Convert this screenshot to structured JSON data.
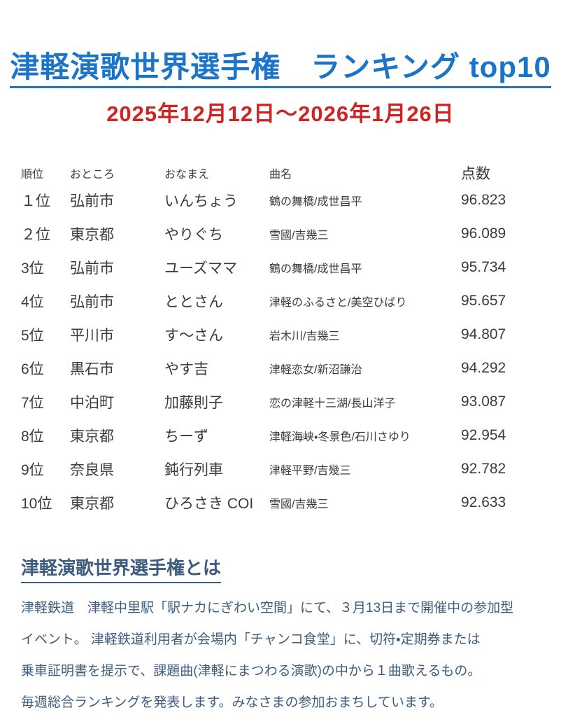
{
  "page": {
    "title": "津軽演歌世界選手権　ランキング top10",
    "date_range": "2025年12月12日～2026年1月26日"
  },
  "table": {
    "headers": {
      "rank": "順位",
      "place": "おところ",
      "name": "おなまえ",
      "song": "曲名",
      "score": "点数"
    },
    "rows": [
      {
        "rank": "１位",
        "place": "弘前市",
        "name": "いんちょう",
        "song": "鶴の舞橋/成世昌平",
        "score": "96.823"
      },
      {
        "rank": "２位",
        "place": "東京都",
        "name": "やりぐち",
        "song": "雪國/吉幾三",
        "score": "96.089"
      },
      {
        "rank": "3位",
        "place": "弘前市",
        "name": "ユーズママ",
        "song": "鶴の舞橋/成世昌平",
        "score": "95.734"
      },
      {
        "rank": "4位",
        "place": "弘前市",
        "name": "ととさん",
        "song": "津軽のふるさと/美空ひばり",
        "score": "95.657"
      },
      {
        "rank": "5位",
        "place": "平川市",
        "name": "す～さん",
        "song": "岩木川/吉幾三",
        "score": "94.807"
      },
      {
        "rank": "6位",
        "place": "黒石市",
        "name": "やす吉",
        "song": "津軽恋女/新沼謙治",
        "score": "94.292"
      },
      {
        "rank": "7位",
        "place": "中泊町",
        "name": "加藤則子",
        "song": "恋の津軽十三湖/長山洋子",
        "score": "93.087"
      },
      {
        "rank": "8位",
        "place": "東京都",
        "name": "ちーず",
        "song": "津軽海峡・冬景色/石川さゆり",
        "score": "92.954"
      },
      {
        "rank": "9位",
        "place": "奈良県",
        "name": "鈍行列車",
        "song": "津軽平野/吉幾三",
        "score": "92.782"
      },
      {
        "rank": "10位",
        "place": "東京都",
        "name": "ひろさき COI",
        "song": "雪國/吉幾三",
        "score": "92.633"
      }
    ]
  },
  "about": {
    "heading": "津軽演歌世界選手権とは",
    "lines": [
      "津軽鉄道　津軽中里駅「駅ナカにぎわい空間」にて、３月13日まで開催中の参加型",
      "イベント。 津軽鉄道利用者が会場内「チャンコ食堂」に、切符・定期券または",
      "乗車証明書を提示で、課題曲(津軽にまつわる演歌)の中から１曲歌えるもの。",
      "毎週総合ランキングを発表します。みなさまの参加おまちしています。"
    ]
  },
  "colors": {
    "title_blue": "#1b74c8",
    "date_red": "#cf2424",
    "body_slate": "#3e5c7d",
    "table_text": "#3b3b3b"
  }
}
